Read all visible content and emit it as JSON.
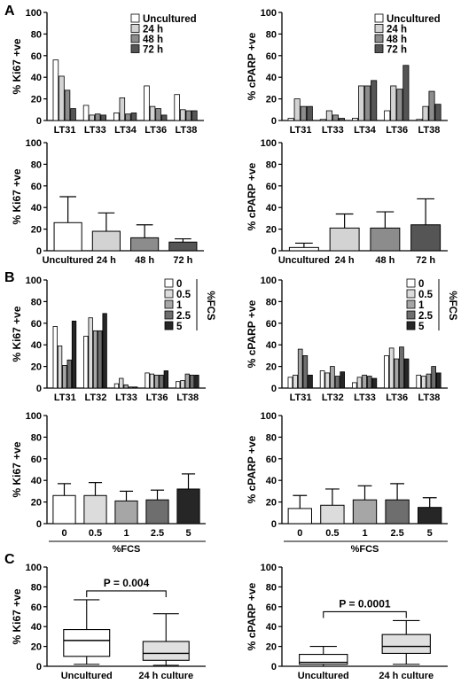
{
  "panel_letters": [
    "A",
    "B",
    "C"
  ],
  "chart_data": [
    {
      "type": "bar",
      "id": "A1",
      "panel": "A",
      "ylabel": "% Ki67 +ve",
      "ylim": [
        0,
        100
      ],
      "yticks": [
        0,
        20,
        40,
        60,
        80,
        100
      ],
      "categories": [
        "LT31",
        "LT33",
        "LT34",
        "LT36",
        "LT38"
      ],
      "series": [
        {
          "name": "Uncultured",
          "values": [
            56,
            14,
            7,
            32,
            24
          ]
        },
        {
          "name": "24 h",
          "values": [
            41,
            5,
            21,
            13,
            10
          ]
        },
        {
          "name": "48 h",
          "values": [
            28,
            6,
            6,
            11,
            9
          ]
        },
        {
          "name": "72 h",
          "values": [
            11,
            5,
            7,
            5,
            9
          ]
        }
      ],
      "legend_position": "top-right"
    },
    {
      "type": "bar",
      "id": "A2",
      "panel": "A",
      "ylabel": "% cPARP +ve",
      "ylim": [
        0,
        100
      ],
      "yticks": [
        0,
        20,
        40,
        60,
        80,
        100
      ],
      "categories": [
        "LT31",
        "LT33",
        "LT34",
        "LT36",
        "LT38"
      ],
      "series": [
        {
          "name": "Uncultured",
          "values": [
            2,
            1,
            2,
            9,
            1
          ]
        },
        {
          "name": "24 h",
          "values": [
            20,
            9,
            32,
            32,
            13
          ]
        },
        {
          "name": "48 h",
          "values": [
            13,
            5,
            32,
            29,
            27
          ]
        },
        {
          "name": "72 h",
          "values": [
            13,
            2,
            37,
            51,
            15
          ]
        }
      ],
      "legend_position": "top-right"
    },
    {
      "type": "bar",
      "id": "A3",
      "panel": "A",
      "ylabel": "% Ki67 +ve",
      "ylim": [
        0,
        100
      ],
      "yticks": [
        0,
        20,
        40,
        60,
        80,
        100
      ],
      "categories": [
        "Uncultured",
        "24 h",
        "48 h",
        "72 h"
      ],
      "values": [
        26,
        18,
        12,
        8
      ],
      "errors": [
        24,
        17,
        12,
        3
      ]
    },
    {
      "type": "bar",
      "id": "A4",
      "panel": "A",
      "ylabel": "% cPARP +ve",
      "ylim": [
        0,
        100
      ],
      "yticks": [
        0,
        20,
        40,
        60,
        80,
        100
      ],
      "categories": [
        "Uncultured",
        "24 h",
        "48 h",
        "72 h"
      ],
      "values": [
        3,
        21,
        21,
        24
      ],
      "errors": [
        4,
        13,
        15,
        24
      ]
    },
    {
      "type": "bar",
      "id": "B1",
      "panel": "B",
      "ylabel": "% Ki67 +ve",
      "ylim": [
        0,
        100
      ],
      "yticks": [
        0,
        20,
        40,
        60,
        80,
        100
      ],
      "categories": [
        "LT31",
        "LT32",
        "LT33",
        "LT36",
        "LT38"
      ],
      "series": [
        {
          "name": "0",
          "values": [
            57,
            48,
            4,
            14,
            6
          ]
        },
        {
          "name": "0.5",
          "values": [
            39,
            65,
            9,
            13,
            7
          ]
        },
        {
          "name": "1",
          "values": [
            21,
            53,
            3,
            12,
            13
          ]
        },
        {
          "name": "2.5",
          "values": [
            26,
            53,
            1,
            12,
            12
          ]
        },
        {
          "name": "5",
          "values": [
            62,
            69,
            1,
            16,
            12
          ]
        }
      ],
      "legend_title": "%FCS",
      "legend_position": "top-right"
    },
    {
      "type": "bar",
      "id": "B2",
      "panel": "B",
      "ylabel": "% cPARP +ve",
      "ylim": [
        0,
        100
      ],
      "yticks": [
        0,
        20,
        40,
        60,
        80,
        100
      ],
      "categories": [
        "LT31",
        "LT32",
        "LT33",
        "LT36",
        "LT38"
      ],
      "series": [
        {
          "name": "0",
          "values": [
            10,
            16,
            5,
            30,
            12
          ]
        },
        {
          "name": "0.5",
          "values": [
            12,
            14,
            10,
            37,
            11
          ]
        },
        {
          "name": "1",
          "values": [
            36,
            20,
            12,
            27,
            13
          ]
        },
        {
          "name": "2.5",
          "values": [
            30,
            11,
            11,
            38,
            20
          ]
        },
        {
          "name": "5",
          "values": [
            12,
            15,
            9,
            27,
            14
          ]
        }
      ],
      "legend_title": "%FCS",
      "legend_position": "top-right"
    },
    {
      "type": "bar",
      "id": "B3",
      "panel": "B",
      "ylabel": "% Ki67 +ve",
      "xlabel": "%FCS",
      "ylim": [
        0,
        100
      ],
      "yticks": [
        0,
        20,
        40,
        60,
        80,
        100
      ],
      "categories": [
        "0",
        "0.5",
        "1",
        "2.5",
        "5"
      ],
      "values": [
        26,
        26,
        21,
        22,
        32
      ],
      "errors": [
        11,
        12,
        9,
        9,
        14
      ]
    },
    {
      "type": "bar",
      "id": "B4",
      "panel": "B",
      "ylabel": "% cPARP +ve",
      "xlabel": "%FCS",
      "ylim": [
        0,
        100
      ],
      "yticks": [
        0,
        20,
        40,
        60,
        80,
        100
      ],
      "categories": [
        "0",
        "0.5",
        "1",
        "2.5",
        "5"
      ],
      "values": [
        14,
        17,
        22,
        22,
        15
      ],
      "errors": [
        12,
        15,
        13,
        15,
        9
      ]
    },
    {
      "type": "box",
      "id": "C1",
      "panel": "C",
      "ylabel": "% Ki67 +ve",
      "ylim": [
        0,
        100
      ],
      "yticks": [
        0,
        20,
        40,
        60,
        80,
        100
      ],
      "categories": [
        "Uncultured",
        "24 h culture"
      ],
      "boxes": [
        {
          "min": 2,
          "q1": 10,
          "median": 26,
          "q3": 37,
          "max": 67
        },
        {
          "min": 1,
          "q1": 6,
          "median": 13,
          "q3": 25,
          "max": 53
        }
      ],
      "annotation": "P = 0.004"
    },
    {
      "type": "box",
      "id": "C2",
      "panel": "C",
      "ylabel": "% cPARP +ve",
      "ylim": [
        0,
        100
      ],
      "yticks": [
        0,
        20,
        40,
        60,
        80,
        100
      ],
      "categories": [
        "Uncultured",
        "24 h culture"
      ],
      "boxes": [
        {
          "min": 0,
          "q1": 2,
          "median": 4,
          "q3": 12,
          "max": 20
        },
        {
          "min": 2,
          "q1": 13,
          "median": 20,
          "q3": 32,
          "max": 46
        }
      ],
      "annotation": "P = 0.0001"
    }
  ],
  "colors": {
    "four_step": [
      "#ffffff",
      "#d3d3d3",
      "#8c8c8c",
      "#555555"
    ],
    "five_step": [
      "#ffffff",
      "#dcdcdc",
      "#a6a6a6",
      "#6e6e6e",
      "#262626"
    ],
    "box_fill": [
      "#ffffff",
      "#e0e0e0"
    ],
    "stroke": "#000000"
  }
}
